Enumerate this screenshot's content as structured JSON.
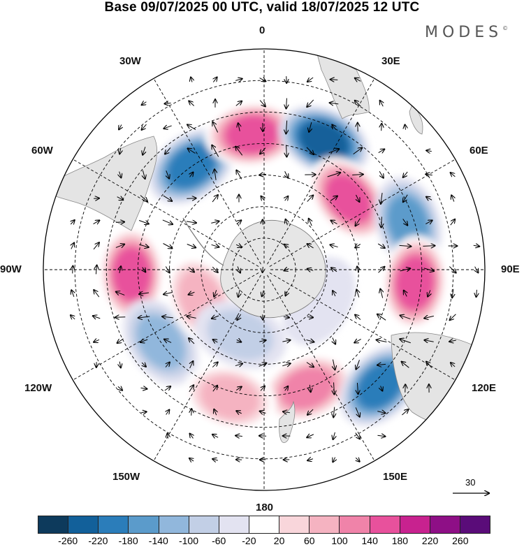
{
  "title": "Base 09/07/2025 00 UTC, valid 18/07/2025 12 UTC",
  "logo": "MODES",
  "logo_mark": "©",
  "projection": "south-polar-stereographic",
  "longitude_labels": {
    "top": "0",
    "top_left": "30W",
    "top_right": "30E",
    "upper_left": "60W",
    "upper_right": "60E",
    "left": "90W",
    "right": "90E",
    "lower_left": "120W",
    "lower_right": "120E",
    "bottom_left": "150W",
    "bottom_right": "150E",
    "bottom": "180"
  },
  "reference_vector": "30",
  "colorbar": {
    "labels": [
      "-260",
      "-220",
      "-180",
      "-140",
      "-100",
      "-60",
      "-20",
      "20",
      "60",
      "100",
      "140",
      "180",
      "220",
      "260"
    ],
    "colors": [
      "#0d3a5c",
      "#12609a",
      "#2b7dba",
      "#5b9bcb",
      "#91b7dc",
      "#c2cfe6",
      "#e3e3f1",
      "#ffffff",
      "#f9d6db",
      "#f5b3c1",
      "#f083a9",
      "#e8519c",
      "#c8228f",
      "#8e0f86",
      "#5a0c79"
    ]
  },
  "anomaly_centers": [
    {
      "lon": -35,
      "lat": -50,
      "value": -180
    },
    {
      "lon": -5,
      "lat": -47,
      "value": 160
    },
    {
      "lon": 25,
      "lat": -45,
      "value": -200
    },
    {
      "lon": 50,
      "lat": -55,
      "value": 180
    },
    {
      "lon": 72,
      "lat": -42,
      "value": -150
    },
    {
      "lon": 95,
      "lat": -42,
      "value": 190
    },
    {
      "lon": -92,
      "lat": -48,
      "value": 170
    },
    {
      "lon": -125,
      "lat": -50,
      "value": -100
    },
    {
      "lon": -115,
      "lat": -68,
      "value": 110
    },
    {
      "lon": 160,
      "lat": -50,
      "value": 130
    },
    {
      "lon": -165,
      "lat": -48,
      "value": 80
    },
    {
      "lon": 135,
      "lat": -38,
      "value": -160
    },
    {
      "lon": -160,
      "lat": -68,
      "value": -40
    },
    {
      "lon": 120,
      "lat": -70,
      "value": -30
    }
  ]
}
